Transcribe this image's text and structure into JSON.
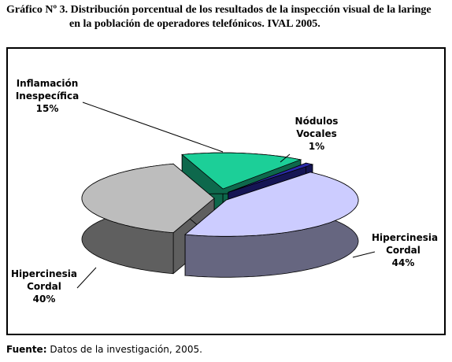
{
  "chart_data": {
    "type": "pie3d",
    "title": "Gráfico Nº 3. Distribución porcentual de los resultados de la inspección visual de la laringe en la población de operadores telefónicos. IVAL 2005.",
    "categories": [
      "Inflamación Inespecífica",
      "Nódulos Vocales",
      "Hipercinesia Cordal",
      "Hipercinesia Cordal"
    ],
    "values": [
      15,
      1,
      44,
      40
    ],
    "value_labels": [
      "15%",
      "1%",
      "44%",
      "40%"
    ],
    "colors": [
      "#1ccf98",
      "#2a2aa8",
      "#ccccff",
      "#bdbdbd"
    ]
  },
  "source": {
    "label": "Fuente:",
    "text": "Datos de la investigación, 2005."
  }
}
